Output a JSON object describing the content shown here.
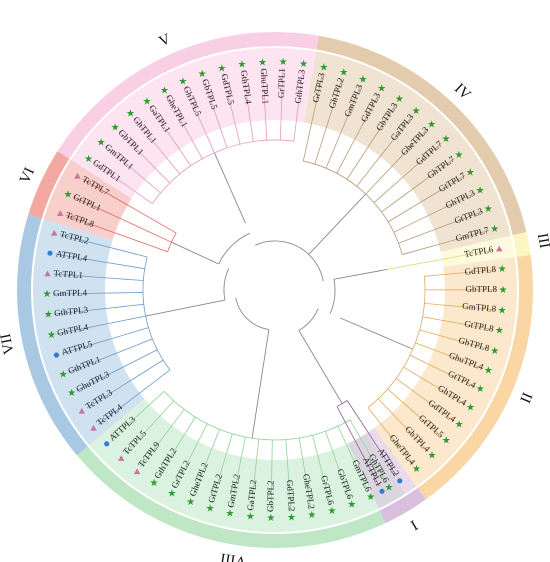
{
  "groups": [
    {
      "label": "I",
      "color": "#d9bedd"
    },
    {
      "label": "II",
      "color": "#f9d6a3"
    },
    {
      "label": "III",
      "color": "#fbf6c2"
    },
    {
      "label": "IV",
      "color": "#e3ccad"
    },
    {
      "label": "V",
      "color": "#f9cfe4"
    },
    {
      "label": "VI",
      "color": "#f4a8a2"
    },
    {
      "label": "VII",
      "color": "#a9c8e3"
    },
    {
      "label": "VIII",
      "color": "#bfe7c6"
    }
  ],
  "colors": {
    "branch_I": "#8a5f93",
    "branch_II": "#e4a85a",
    "branch_III": "#e6d97a",
    "branch_IV": "#b69c78",
    "branch_V": "#e59ac0",
    "branch_VI": "#e0665e",
    "branch_VII": "#6c9cc8",
    "branch_VIII": "#8fd39b",
    "branch_core": "#8a8a8a",
    "star": "#2f9a2f",
    "circle": "#2d7fd6",
    "triangle": "#c8759d"
  },
  "leaves": [
    {
      "name": "GhTPL6",
      "group": "VIII",
      "marker": "star"
    },
    {
      "name": "GmTPL6",
      "group": "VIII",
      "marker": "star"
    },
    {
      "name": "GbTPL6",
      "group": "VIII",
      "marker": "star"
    },
    {
      "name": "GrTPL6",
      "group": "VIII",
      "marker": "star"
    },
    {
      "name": "GheTPL2",
      "group": "VIII",
      "marker": "star"
    },
    {
      "name": "GdTPL2",
      "group": "VIII",
      "marker": "star"
    },
    {
      "name": "GbTPL2",
      "group": "VIII",
      "marker": "star"
    },
    {
      "name": "GaTPL2",
      "group": "VIII",
      "marker": "star"
    },
    {
      "name": "GmTPL2",
      "group": "VIII",
      "marker": "star"
    },
    {
      "name": "GtTPL2",
      "group": "VIII",
      "marker": "star"
    },
    {
      "name": "GheTPL2",
      "group": "VIII",
      "marker": "star"
    },
    {
      "name": "GrTPL2",
      "group": "VIII",
      "marker": "star"
    },
    {
      "name": "GthTPL2",
      "group": "VIII",
      "marker": "star"
    },
    {
      "name": "TcTPL9",
      "group": "VIII",
      "marker": "triangle"
    },
    {
      "name": "TcTPL5",
      "group": "VIII",
      "marker": "triangle"
    },
    {
      "name": "ATTPL3",
      "group": "VIII",
      "marker": "circle"
    },
    {
      "name": "TcTPL4",
      "group": "VII",
      "marker": "triangle"
    },
    {
      "name": "TcTPL3",
      "group": "VII",
      "marker": "triangle"
    },
    {
      "name": "GhuTPL3",
      "group": "VII",
      "marker": "star"
    },
    {
      "name": "GthTPL1",
      "group": "VII",
      "marker": "star"
    },
    {
      "name": "ATTPL5",
      "group": "VII",
      "marker": "circle"
    },
    {
      "name": "GhTPL4",
      "group": "VII",
      "marker": "star"
    },
    {
      "name": "GthTPL3",
      "group": "VII",
      "marker": "star"
    },
    {
      "name": "GmTPL4",
      "group": "VII",
      "marker": "star"
    },
    {
      "name": "TcTPL1",
      "group": "VII",
      "marker": "triangle"
    },
    {
      "name": "ATTPL4",
      "group": "VII",
      "marker": "circle"
    },
    {
      "name": "TcTPL2",
      "group": "VII",
      "marker": "triangle"
    },
    {
      "name": "TcTPL8",
      "group": "VI",
      "marker": "triangle"
    },
    {
      "name": "GtTPL1",
      "group": "VI",
      "marker": "star"
    },
    {
      "name": "TcTPL7",
      "group": "VI",
      "marker": "triangle"
    },
    {
      "name": "GdTPL1",
      "group": "V",
      "marker": "star"
    },
    {
      "name": "GmTPL1",
      "group": "V",
      "marker": "star"
    },
    {
      "name": "GbTPL1",
      "group": "V",
      "marker": "star"
    },
    {
      "name": "GhTPL1",
      "group": "V",
      "marker": "star"
    },
    {
      "name": "GaTPL1",
      "group": "V",
      "marker": "star"
    },
    {
      "name": "GheTPL1",
      "group": "V",
      "marker": "star"
    },
    {
      "name": "GhTPL5",
      "group": "V",
      "marker": "star"
    },
    {
      "name": "GbTPL5",
      "group": "V",
      "marker": "star"
    },
    {
      "name": "GdTPL5",
      "group": "V",
      "marker": "star"
    },
    {
      "name": "GthTPL4",
      "group": "V",
      "marker": "star"
    },
    {
      "name": "GhuTPL1",
      "group": "V",
      "marker": "star"
    },
    {
      "name": "GrTPL1",
      "group": "V",
      "marker": "star"
    },
    {
      "name": "GthTPL3",
      "group": "V",
      "marker": "star"
    },
    {
      "name": "GrTPL3",
      "group": "IV",
      "marker": "star"
    },
    {
      "name": "GhTPL2",
      "group": "IV",
      "marker": "star"
    },
    {
      "name": "GmTPL3",
      "group": "IV",
      "marker": "star"
    },
    {
      "name": "GdTPL3",
      "group": "IV",
      "marker": "star"
    },
    {
      "name": "GbTPL3",
      "group": "IV",
      "marker": "star"
    },
    {
      "name": "GaTPL3",
      "group": "IV",
      "marker": "star"
    },
    {
      "name": "GheTPL3",
      "group": "IV",
      "marker": "star"
    },
    {
      "name": "GdTPL7",
      "group": "IV",
      "marker": "star"
    },
    {
      "name": "GhTPL7",
      "group": "IV",
      "marker": "star"
    },
    {
      "name": "GtTPL7",
      "group": "IV",
      "marker": "star"
    },
    {
      "name": "GhTPL3",
      "group": "IV",
      "marker": "star"
    },
    {
      "name": "GtTPL3",
      "group": "IV",
      "marker": "star"
    },
    {
      "name": "GmTPL7",
      "group": "IV",
      "marker": "star"
    },
    {
      "name": "TcTPL6",
      "group": "III",
      "marker": "triangle"
    },
    {
      "name": "GdTPL8",
      "group": "II",
      "marker": "star"
    },
    {
      "name": "GbTPL8",
      "group": "II",
      "marker": "star"
    },
    {
      "name": "GmTPL8",
      "group": "II",
      "marker": "star"
    },
    {
      "name": "GtTPL8",
      "group": "II",
      "marker": "star"
    },
    {
      "name": "GbTPL8",
      "group": "II",
      "marker": "star"
    },
    {
      "name": "GhuTPL4",
      "group": "II",
      "marker": "star"
    },
    {
      "name": "GtTPL4",
      "group": "II",
      "marker": "star"
    },
    {
      "name": "GhTPL4",
      "group": "II",
      "marker": "star"
    },
    {
      "name": "GdTPL4",
      "group": "II",
      "marker": "star"
    },
    {
      "name": "GtTPL5",
      "group": "II",
      "marker": "star"
    },
    {
      "name": "GbTPL4",
      "group": "II",
      "marker": "star"
    },
    {
      "name": "GheTPL4",
      "group": "II",
      "marker": "star"
    },
    {
      "name": "ATTPL2",
      "group": "I",
      "marker": "circle"
    },
    {
      "name": "ATTPL1",
      "group": "I",
      "marker": "circle"
    }
  ]
}
